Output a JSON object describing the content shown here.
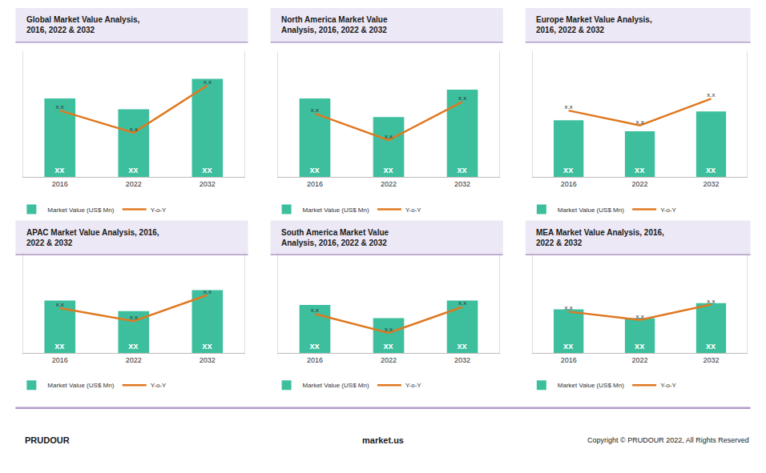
{
  "chart_data": [
    {
      "type": "bar",
      "title": "Global Market Value Analysis,\n2016, 2022 & 2032",
      "categories": [
        "2016",
        "2022",
        "2032"
      ],
      "series": [
        {
          "name": "Market Value (US$ Mn)",
          "type": "bar",
          "color": "#3dbf9e",
          "values": [
            0.72,
            0.62,
            0.9
          ],
          "value_labels": [
            "xx",
            "xx",
            "xx"
          ]
        },
        {
          "name": "Y-o-Y",
          "type": "line",
          "axis": "y2",
          "color": "#e07820",
          "values": [
            0.7,
            0.55,
            0.87
          ],
          "value_labels": [
            "x.x",
            "x.x",
            "x.x"
          ]
        }
      ],
      "ylim": [
        0,
        1.15
      ],
      "yticks": [],
      "y2lim": [
        0.25,
        1.1
      ],
      "y2ticks": [],
      "tick_labels": "x",
      "grid": false,
      "data_labels": true,
      "legend": "bottom"
    },
    {
      "type": "bar",
      "title": "North America Market Value\nAnalysis, 2016, 2022 & 2032",
      "categories": [
        "2016",
        "2022",
        "2032"
      ],
      "series": [
        {
          "name": "Market Value (US$ Mn)",
          "type": "bar",
          "color": "#3dbf9e",
          "values": [
            0.72,
            0.55,
            0.8
          ],
          "value_labels": [
            "xx",
            "xx",
            "xx"
          ]
        },
        {
          "name": "Y-o-Y",
          "type": "line",
          "axis": "y2",
          "color": "#e07820",
          "values": [
            0.68,
            0.5,
            0.76
          ],
          "value_labels": [
            "x.x",
            "x.x",
            "x.x"
          ]
        }
      ],
      "ylim": [
        0,
        1.15
      ],
      "yticks": [],
      "y2lim": [
        0.25,
        1.1
      ],
      "y2ticks": [],
      "tick_labels": "x",
      "grid": false,
      "data_labels": true,
      "legend": "bottom"
    },
    {
      "type": "bar",
      "title": "Europe Market Value Analysis,\n2016, 2022 & 2032",
      "categories": [
        "2016",
        "2022",
        "2032"
      ],
      "series": [
        {
          "name": "Market Value (US$ Mn)",
          "type": "bar",
          "color": "#3dbf9e",
          "values": [
            0.52,
            0.42,
            0.6
          ],
          "value_labels": [
            "xx",
            "xx",
            "xx"
          ]
        },
        {
          "name": "Y-o-Y",
          "type": "line",
          "axis": "y2",
          "color": "#e07820",
          "values": [
            0.7,
            0.6,
            0.78
          ],
          "value_labels": [
            "x.x",
            "x.x",
            "x.x"
          ]
        }
      ],
      "ylim": [
        0,
        1.15
      ],
      "yticks": [],
      "y2lim": [
        0.25,
        1.1
      ],
      "y2ticks": [],
      "tick_labels": "x",
      "grid": false,
      "data_labels": true,
      "legend": "bottom"
    },
    {
      "type": "bar",
      "title": "APAC Market Value Analysis, 2016,\n2022 & 2032",
      "categories": [
        "2016",
        "2022",
        "2032"
      ],
      "series": [
        {
          "name": "Market Value (US$ Mn)",
          "type": "bar",
          "color": "#3dbf9e",
          "values": [
            0.6,
            0.48,
            0.72
          ],
          "value_labels": [
            "xx",
            "xx",
            "xx"
          ]
        },
        {
          "name": "Y-o-Y",
          "type": "line",
          "axis": "y2",
          "color": "#e07820",
          "values": [
            0.63,
            0.52,
            0.74
          ],
          "value_labels": [
            "x.x",
            "x.x",
            "x.x"
          ]
        }
      ],
      "ylim": [
        0,
        1.15
      ],
      "yticks": [],
      "y2lim": [
        0.25,
        1.1
      ],
      "y2ticks": [],
      "tick_labels": "x",
      "grid": false,
      "data_labels": true,
      "legend": "bottom"
    },
    {
      "type": "bar",
      "title": "South America Market Value\nAnalysis, 2016, 2022 & 2032",
      "categories": [
        "2016",
        "2022",
        "2032"
      ],
      "series": [
        {
          "name": "Market Value (US$ Mn)",
          "type": "bar",
          "color": "#3dbf9e",
          "values": [
            0.55,
            0.4,
            0.6
          ],
          "value_labels": [
            "xx",
            "xx",
            "xx"
          ]
        },
        {
          "name": "Y-o-Y",
          "type": "line",
          "axis": "y2",
          "color": "#e07820",
          "values": [
            0.58,
            0.42,
            0.64
          ],
          "value_labels": [
            "x.x",
            "x.x",
            "x.x"
          ]
        }
      ],
      "ylim": [
        0,
        1.15
      ],
      "yticks": [],
      "y2lim": [
        0.25,
        1.1
      ],
      "y2ticks": [],
      "tick_labels": "x",
      "grid": false,
      "data_labels": true,
      "legend": "bottom"
    },
    {
      "type": "bar",
      "title": "MEA Market Value Analysis, 2016,\n2022 & 2032",
      "categories": [
        "2016",
        "2022",
        "2032"
      ],
      "series": [
        {
          "name": "Market Value (US$ Mn)",
          "type": "bar",
          "color": "#3dbf9e",
          "values": [
            0.5,
            0.4,
            0.57
          ],
          "value_labels": [
            "xx",
            "xx",
            "xx"
          ]
        },
        {
          "name": "Y-o-Y",
          "type": "line",
          "axis": "y2",
          "color": "#e07820",
          "values": [
            0.6,
            0.53,
            0.66
          ],
          "value_labels": [
            "x.x",
            "x.x",
            "x.x"
          ]
        }
      ],
      "ylim": [
        0,
        1.15
      ],
      "yticks": [],
      "y2lim": [
        0.25,
        1.1
      ],
      "y2ticks": [],
      "tick_labels": "x",
      "grid": false,
      "data_labels": true,
      "legend": "bottom"
    }
  ],
  "annotations": [
    "PRUDOUR",
    "market.us",
    "Copyright © PRUDOUR 2022, All Rights Reserved"
  ]
}
